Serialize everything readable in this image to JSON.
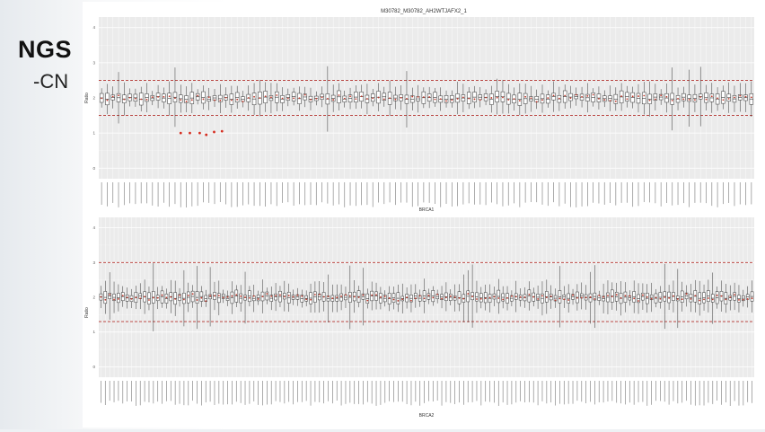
{
  "slide": {
    "title": "NGS",
    "subtitle": "-CN"
  },
  "chart_data": [
    {
      "type": "box",
      "title": "M30782_M30782_AH2WTJAFX2_1",
      "xlabel": "BRCA1",
      "ylabel": "Ratio",
      "ylim": [
        0,
        4
      ],
      "yticks": [
        "0",
        "1",
        "2",
        "3",
        "4"
      ],
      "grid": true,
      "reference_lines": [
        1.5,
        2.5
      ],
      "sample_count": 116,
      "median": 2.0,
      "outliers": [
        {
          "x_fraction": 0.125,
          "y": 1.0
        },
        {
          "x_fraction": 0.139,
          "y": 1.0
        },
        {
          "x_fraction": 0.154,
          "y": 1.0
        },
        {
          "x_fraction": 0.164,
          "y": 0.95
        },
        {
          "x_fraction": 0.176,
          "y": 1.03
        },
        {
          "x_fraction": 0.188,
          "y": 1.05
        }
      ],
      "tick_labels_legible": false
    },
    {
      "type": "box",
      "title": "",
      "xlabel": "BRCA2",
      "ylabel": "Ratio",
      "ylim": [
        0,
        4
      ],
      "yticks": [
        "0",
        "1",
        "2",
        "3",
        "4"
      ],
      "grid": true,
      "reference_lines": [
        1.3,
        3.0
      ],
      "sample_count": 150,
      "median": 2.0,
      "outliers": [],
      "tick_labels_legible": false
    }
  ]
}
